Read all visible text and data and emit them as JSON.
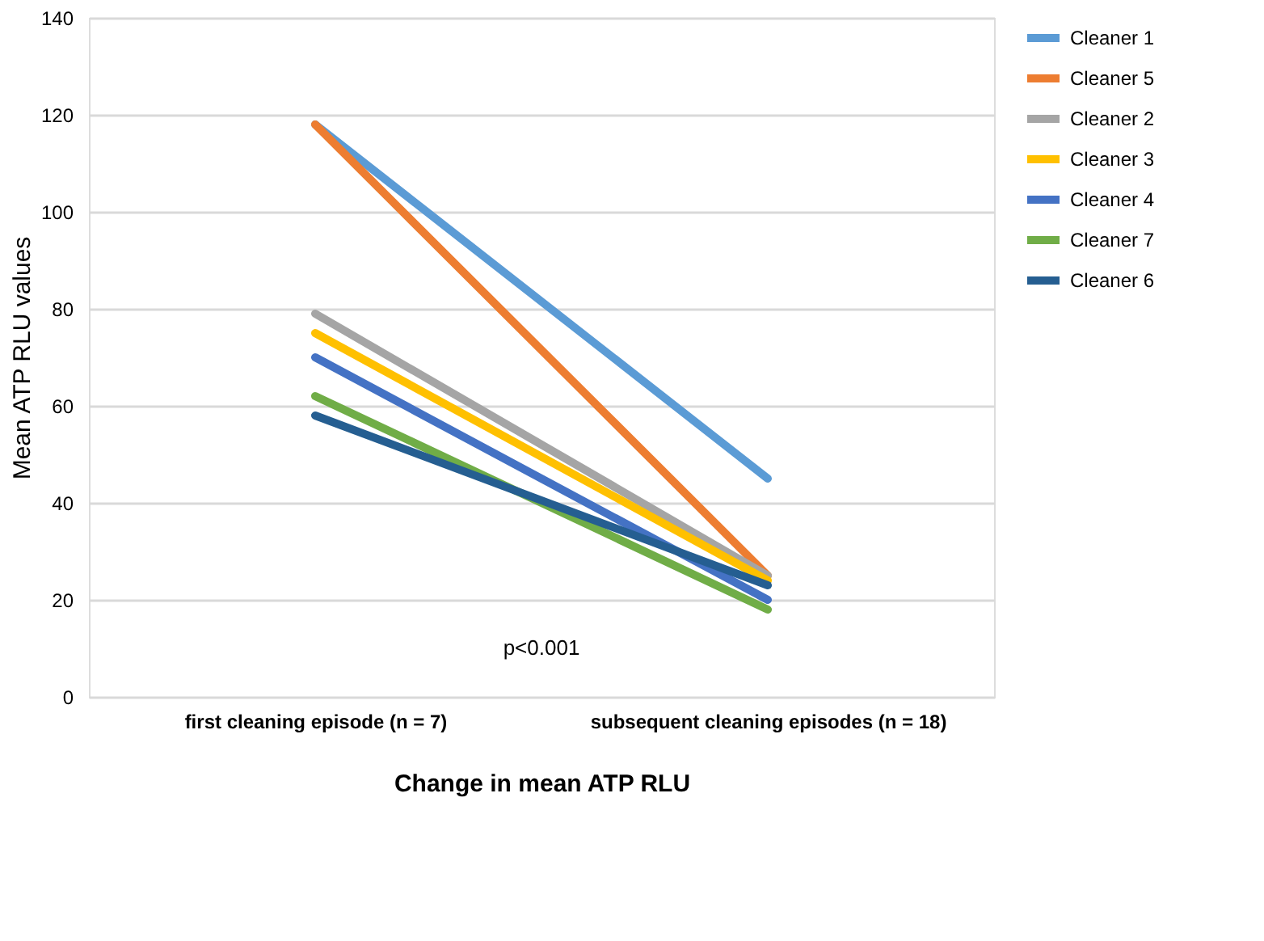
{
  "chart_data": {
    "type": "line",
    "xlabel": "Change in mean ATP RLU",
    "ylabel": "Mean ATP RLU values",
    "categories": [
      "first cleaning episode (n = 7)",
      "subsequent cleaning episodes (n = 18)"
    ],
    "series": [
      {
        "name": "Cleaner 1",
        "color": "#5b9bd5",
        "values": [
          118,
          45
        ]
      },
      {
        "name": "Cleaner 5",
        "color": "#ed7d31",
        "values": [
          118,
          25
        ]
      },
      {
        "name": "Cleaner 2",
        "color": "#a5a5a5",
        "values": [
          79,
          25
        ]
      },
      {
        "name": "Cleaner 3",
        "color": "#ffc000",
        "values": [
          75,
          24
        ]
      },
      {
        "name": "Cleaner 4",
        "color": "#4472c4",
        "values": [
          70,
          20
        ]
      },
      {
        "name": "Cleaner 7",
        "color": "#70ad47",
        "values": [
          62,
          18
        ]
      },
      {
        "name": "Cleaner 6",
        "color": "#255e91",
        "values": [
          58,
          23
        ]
      }
    ],
    "ylim": [
      0,
      140
    ],
    "yticks": [
      0,
      20,
      40,
      60,
      80,
      100,
      120,
      140
    ],
    "grid": "y",
    "legend": "right",
    "marker": "none",
    "line_style": "solid",
    "annotations": [
      "p<0.001"
    ]
  }
}
